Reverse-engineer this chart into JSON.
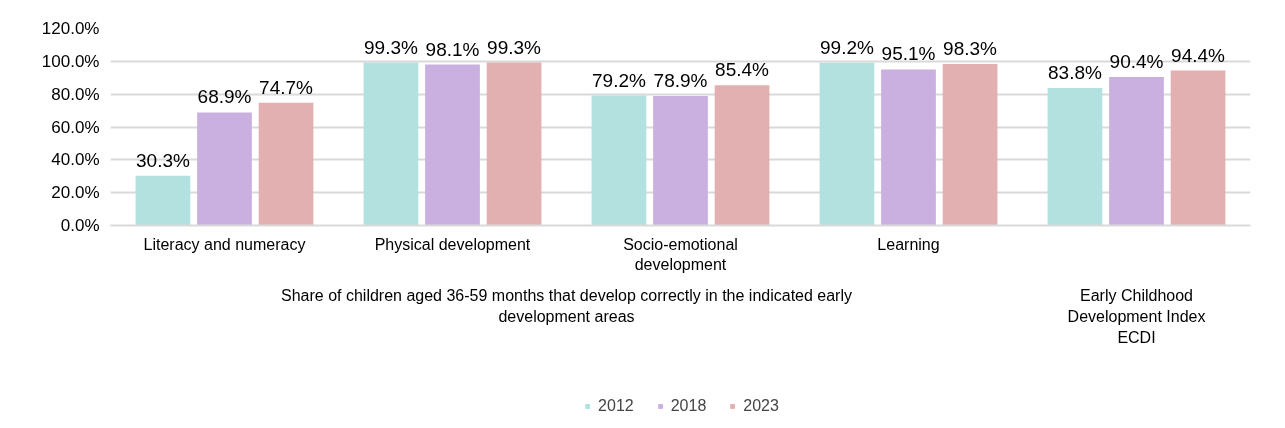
{
  "chart_data": {
    "type": "bar",
    "categories": [
      "Literacy and numeracy",
      "Physical development",
      "Socio-emotional development",
      "Learning",
      null
    ],
    "series": [
      {
        "name": "2012",
        "color": "#b2e1e0",
        "values": [
          30.3,
          99.3,
          79.2,
          99.2,
          83.8
        ],
        "value_labels": [
          "30.3%",
          "99.3%",
          "79.2%",
          "99.2%",
          "83.8%"
        ]
      },
      {
        "name": "2018",
        "color": "#c9b0e0",
        "values": [
          68.9,
          98.1,
          78.9,
          95.1,
          90.4
        ],
        "value_labels": [
          "68.9%",
          "98.1%",
          "78.9%",
          "95.1%",
          "90.4%"
        ]
      },
      {
        "name": "2023",
        "color": "#e2b0b0",
        "values": [
          74.7,
          99.3,
          85.4,
          98.3,
          94.4
        ],
        "value_labels": [
          "74.7%",
          "99.3%",
          "85.4%",
          "98.3%",
          "94.4%"
        ]
      }
    ],
    "annotations": [
      "Share of children aged 36-59 months that develop correctly in the indicated early development areas",
      "Early Childhood Development Index ECDI"
    ],
    "ylim": [
      0,
      120
    ],
    "yticks": [
      {
        "value": 0,
        "label": "0.0%"
      },
      {
        "value": 20,
        "label": "20.0%"
      },
      {
        "value": 40,
        "label": "40.0%"
      },
      {
        "value": 60,
        "label": "60.0%"
      },
      {
        "value": 80,
        "label": "80.0%"
      },
      {
        "value": 100,
        "label": "100.0%"
      },
      {
        "value": 120,
        "label": "120.0%"
      }
    ],
    "grid": "y",
    "legend": "bottom"
  }
}
